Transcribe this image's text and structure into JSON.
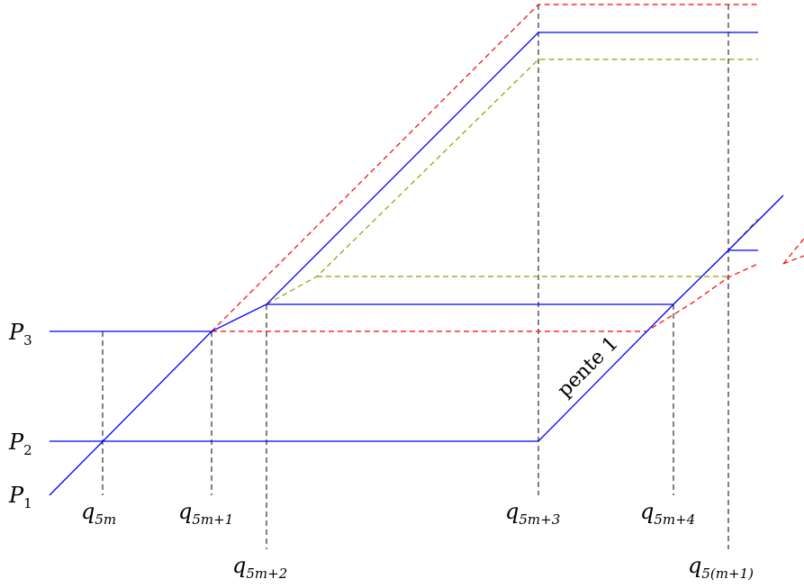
{
  "labels": {
    "P3": {
      "base": "P",
      "sub": "3"
    },
    "P2": {
      "base": "P",
      "sub": "2"
    },
    "P1": {
      "base": "P",
      "sub": "1"
    },
    "q5m": {
      "base": "q",
      "sub": "5m"
    },
    "q5m1": {
      "base": "q",
      "sub": "5m+1"
    },
    "q5m2": {
      "base": "q",
      "sub": "5m+2"
    },
    "q5m3": {
      "base": "q",
      "sub": "5m+3"
    },
    "q5m4": {
      "base": "q",
      "sub": "5m+4"
    },
    "q5m5": {
      "base": "q",
      "sub": "5(m+1)"
    }
  },
  "annotation": "pente 1",
  "colors": {
    "blue": "#0000ff",
    "red": "#ff0000",
    "olive": "#9a9a00",
    "guide": "#000000"
  }
}
